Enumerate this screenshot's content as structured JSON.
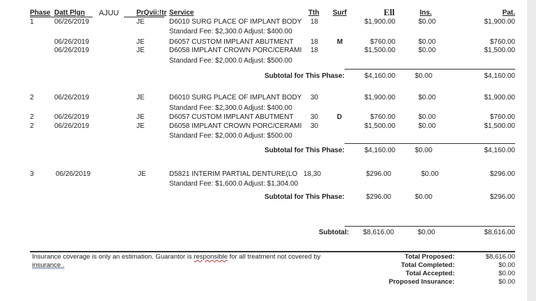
{
  "headers": {
    "phase": "Phase",
    "date": "Datt Plgn",
    "extra": "AJUU",
    "provider": "PrQvii:!tr",
    "service": "Service",
    "tooth": "Tth",
    "surf": "Surf",
    "est": "Ell",
    "ins": "Ins.",
    "pat": "Pat."
  },
  "phases": [
    {
      "rows": [
        {
          "phase": "1",
          "date": "06/26/2019",
          "prov": "JE",
          "service": "D6010 SURG PLACE OF IMPLANT BODY",
          "tooth": "18",
          "surf": "",
          "est": "$1,900.00",
          "ins": "$0.00",
          "pat": "$1,900.00",
          "note": "Standard Fee: $2,300.0 Adjust: $400.00"
        },
        {
          "phase": "",
          "date": "06/26/2019",
          "prov": "JE",
          "service": "D6057 CUSTOM IMPLANT ABUTMENT",
          "tooth": "18",
          "surf": "M",
          "est": "$760.00",
          "ins": "$0.00",
          "pat": "$760.00",
          "note": ""
        },
        {
          "phase": "",
          "date": "06/26/2019",
          "prov": "JE",
          "service": "D6058 IMPLANT CROWN PORC/CERAMI",
          "tooth": "18",
          "surf": "",
          "est": "$1,500.00",
          "ins": "$0.00",
          "pat": "$1,500.00",
          "note": "Standard Fee: $2,000.0 Adjust: $500.00"
        }
      ],
      "subtotal_label": "Subtotal for This Phase:",
      "sub_est": "$4,160.00",
      "sub_ins": "$0.00",
      "sub_pat": "$4,160.00"
    },
    {
      "rows": [
        {
          "phase": "2",
          "date": "06/26/2019",
          "prov": "JE",
          "service": "D6010 SURG PLACE OF IMPLANT BODY",
          "tooth": "30",
          "surf": "",
          "est": "$1,900.00",
          "ins": "$0.00",
          "pat": "$1,900.00",
          "note": "Standard Fee: $2,300.0 Adjust: $400.00"
        },
        {
          "phase": "2",
          "date": "06/26/2019",
          "prov": "JE",
          "service": "D6057 CUSTOM IMPLANT ABUTMENT",
          "tooth": "30",
          "surf": "D",
          "est": "$760.00",
          "ins": "$0.00",
          "pat": "$760.00",
          "note": ""
        },
        {
          "phase": "2",
          "date": "06/26/2019",
          "prov": "JE",
          "service": "D6058 IMPLANT CROWN PORC/CERAMI",
          "tooth": "30",
          "surf": "",
          "est": "$1,500.00",
          "ins": "$0.00",
          "pat": "$1,500.00",
          "note": "Standard Fee: $2,000.0 Adjust: $500.00"
        }
      ],
      "subtotal_label": "Subtotal for This Phase:",
      "sub_est": "$4,160.00",
      "sub_ins": "$0.00",
      "sub_pat": "$4,160.00"
    },
    {
      "rows": [
        {
          "phase": "3",
          "date": "06/26/2019",
          "prov": "JE",
          "service": "D5821  INTERIM PARTIAL DENTURE(LO",
          "tooth": "18,30",
          "surf": "",
          "est": "$296.00",
          "ins": "$0.00",
          "pat": "$296.00",
          "note": "Standard Fee: $1,600.0 Adjust: $1,304.00"
        }
      ],
      "subtotal_label": "Subtotal for This Phase:",
      "sub_est": "$296.00",
      "sub_ins": "$0.00",
      "sub_pat": "$296.00"
    }
  ],
  "grand": {
    "label": "Subtotal:",
    "est": "$8,616.00",
    "ins": "$0.00",
    "pat": "$8,616.00"
  },
  "footer": {
    "disclaimer_1": "Insurance coverage is only an estimation. Guarantor is ",
    "disclaimer_word": "responsible",
    "disclaimer_2": " for all treatment not covered by",
    "disclaimer_3": "insurance .",
    "totals": [
      {
        "label": "Total Proposed:",
        "value": "$8,616.00"
      },
      {
        "label": "Total Completed:",
        "value": "$0.00"
      },
      {
        "label": "Total Accepted:",
        "value": "$0.00"
      },
      {
        "label": "Proposed Insurance:",
        "value": "$0.00"
      }
    ]
  }
}
